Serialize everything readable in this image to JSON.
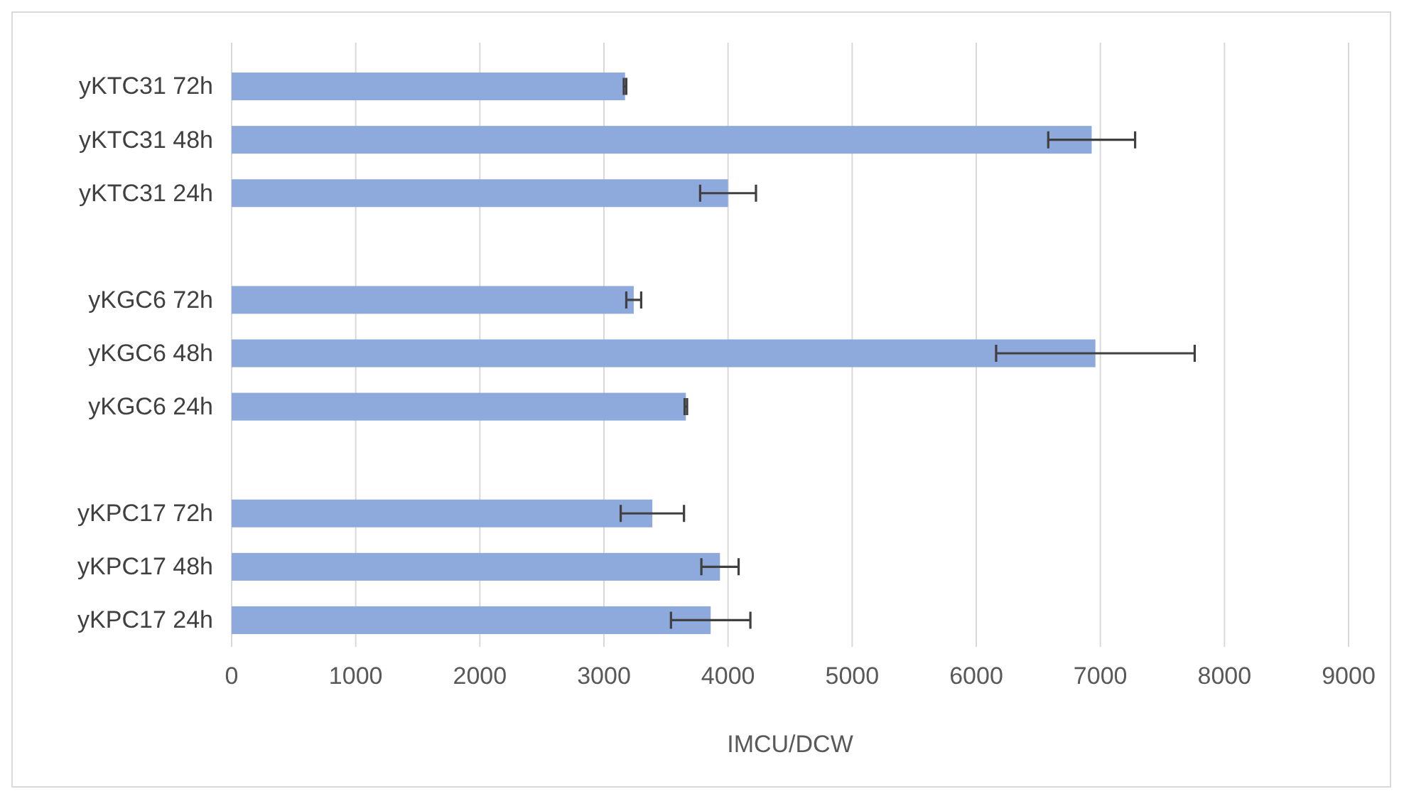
{
  "chart_data": {
    "type": "bar",
    "orientation": "horizontal",
    "xlabel": "IMCU/DCW",
    "categories": [
      "yKTC31 72h",
      "yKTC31 48h",
      "yKTC31 24h",
      null,
      "yKGC6 72h",
      "yKGC6 48h",
      "yKGC6 24h",
      null,
      "yKPC17 72h",
      "yKPC17 48h",
      "yKPC17 24h"
    ],
    "values": [
      3170,
      6930,
      4000,
      null,
      3240,
      6960,
      3660,
      null,
      3390,
      3935,
      3860
    ],
    "errors": [
      10,
      350,
      225,
      null,
      60,
      800,
      10,
      null,
      255,
      150,
      320
    ],
    "color": "#8eaadc",
    "xlim": [
      0,
      9000
    ],
    "xticks": [
      0,
      1000,
      2000,
      3000,
      4000,
      5000,
      6000,
      7000,
      8000,
      9000
    ],
    "grid": "x"
  }
}
